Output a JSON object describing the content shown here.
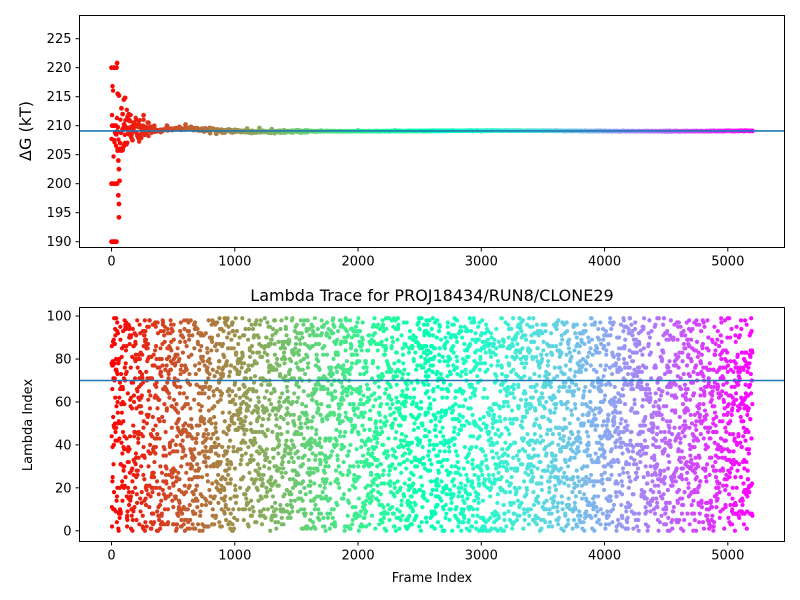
{
  "chart_data": [
    {
      "type": "scatter",
      "title": "",
      "xlabel": "",
      "ylabel": "ΔG (kT)",
      "xlim": [
        -260,
        5460
      ],
      "ylim": [
        189,
        229
      ],
      "x_ticks": [
        0,
        1000,
        2000,
        3000,
        4000,
        5000
      ],
      "y_ticks": [
        190,
        195,
        200,
        205,
        210,
        215,
        220,
        225
      ],
      "colormap": "rainbow",
      "n_frames": 5200,
      "reference_line": {
        "y": 209.1,
        "color": "#1f77b4"
      },
      "series": [
        {
          "description": "running free-energy estimate per frame",
          "points": [
            [
              0,
              190
            ],
            [
              10,
              190
            ],
            [
              20,
              190
            ],
            [
              30,
              190
            ],
            [
              40,
              190
            ],
            [
              0,
              200
            ],
            [
              15,
              200
            ],
            [
              30,
              200
            ],
            [
              45,
              200
            ],
            [
              0,
              220
            ],
            [
              20,
              220
            ],
            [
              40,
              220
            ],
            [
              45,
              220.8
            ],
            [
              5,
              210
            ],
            [
              20,
              210
            ],
            [
              35,
              210
            ],
            [
              45,
              209
            ],
            [
              50,
              206
            ],
            [
              55,
              204
            ],
            [
              60,
              202.5
            ],
            [
              65,
              200.5
            ],
            [
              55,
              198
            ],
            [
              60,
              196.5
            ],
            [
              60,
              194.2
            ],
            [
              50,
              215.5
            ],
            [
              60,
              215.2
            ],
            [
              80,
              213
            ],
            [
              90,
              212
            ],
            [
              100,
              214.5
            ],
            [
              110,
              214.8
            ],
            [
              70,
              207
            ],
            [
              80,
              206
            ],
            [
              90,
              205.8
            ],
            [
              100,
              206.5
            ],
            [
              110,
              207
            ],
            [
              120,
              206.8
            ],
            [
              130,
              211.5
            ],
            [
              140,
              212
            ],
            [
              150,
              210.8
            ],
            [
              160,
              208
            ],
            [
              170,
              207.5
            ],
            [
              180,
              210.5
            ],
            [
              200,
              211
            ],
            [
              220,
              210.3
            ],
            [
              240,
              207.9
            ],
            [
              260,
              211.8
            ],
            [
              280,
              208.5
            ],
            [
              300,
              210.5
            ],
            [
              350,
              209.4
            ],
            [
              400,
              208.9
            ],
            [
              450,
              210
            ],
            [
              500,
              209.3
            ],
            [
              550,
              209.8
            ],
            [
              600,
              210.2
            ],
            [
              650,
              209.7
            ],
            [
              700,
              209.2
            ],
            [
              750,
              209.0
            ],
            [
              800,
              208.7
            ],
            [
              850,
              208.6
            ],
            [
              900,
              208.8
            ],
            [
              1000,
              209.3
            ],
            [
              1100,
              209.5
            ],
            [
              1200,
              209.6
            ],
            [
              1300,
              209.4
            ],
            [
              1400,
              209.2
            ],
            [
              1500,
              209.1
            ],
            [
              1700,
              209.15
            ],
            [
              2000,
              209.2
            ],
            [
              2300,
              209.2
            ],
            [
              2600,
              209.1
            ],
            [
              3000,
              209.05
            ],
            [
              3500,
              209.1
            ],
            [
              4000,
              209.1
            ],
            [
              4500,
              209.1
            ],
            [
              5000,
              209.1
            ],
            [
              5200,
              209.1
            ]
          ]
        }
      ]
    },
    {
      "type": "scatter",
      "title": "Lambda Trace for PROJ18434/RUN8/CLONE29",
      "xlabel": "Frame Index",
      "ylabel": "Lambda Index",
      "xlim": [
        -260,
        5460
      ],
      "ylim": [
        -5,
        104
      ],
      "x_ticks": [
        0,
        1000,
        2000,
        3000,
        4000,
        5000
      ],
      "y_ticks": [
        0,
        20,
        40,
        60,
        80,
        100
      ],
      "colormap": "rainbow",
      "n_frames": 5200,
      "n_lambda": 100,
      "reference_line": {
        "y": 70,
        "color": "#1f77b4"
      },
      "series": [
        {
          "description": "lambda index visited at each frame, spread uniformly over 0-99",
          "frame_range": [
            0,
            5200
          ],
          "lambda_range": [
            0,
            99
          ]
        }
      ]
    }
  ]
}
